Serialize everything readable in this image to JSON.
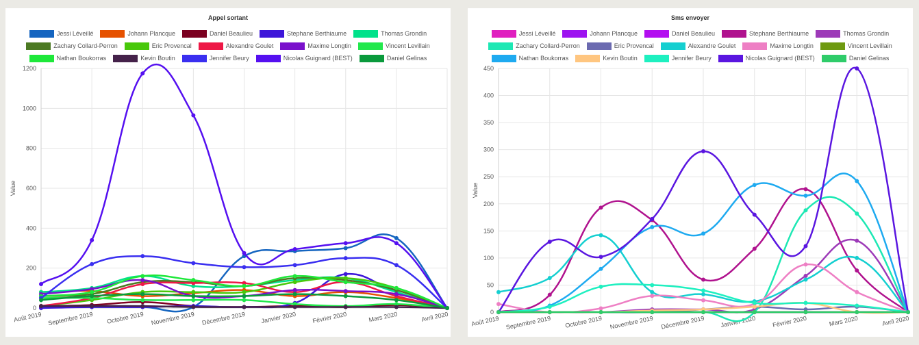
{
  "charts": [
    {
      "id": "left",
      "type": "line",
      "title": "Appel sortant",
      "ylabel": "Value",
      "ylim": [
        0,
        1200
      ],
      "yticks": [
        0,
        200,
        400,
        600,
        800,
        1000,
        1200
      ],
      "categories": [
        "Août 2019",
        "Septembre 2019",
        "Octobre 2019",
        "Novembre 2019",
        "Décembre 2019",
        "Janvier 2020",
        "Février 2020",
        "Mars 2020",
        "Avril 2020"
      ],
      "series": [
        {
          "name": "Jessi Léveillé",
          "color": "#1565c0",
          "values": [
            5,
            5,
            5,
            5,
            260,
            285,
            300,
            350,
            0
          ]
        },
        {
          "name": "Johann Plancque",
          "color": "#e65100",
          "values": [
            80,
            85,
            60,
            75,
            90,
            60,
            80,
            50,
            0
          ]
        },
        {
          "name": "Daniel Beaulieu",
          "color": "#7b0020",
          "values": [
            10,
            15,
            30,
            10,
            5,
            10,
            5,
            15,
            0
          ]
        },
        {
          "name": "Stephane Berthiaume",
          "color": "#3d16d9",
          "values": [
            0,
            5,
            5,
            10,
            5,
            25,
            170,
            80,
            0
          ]
        },
        {
          "name": "Thomas Grondin",
          "color": "#00e28a",
          "values": [
            80,
            100,
            160,
            110,
            110,
            140,
            150,
            80,
            0
          ]
        },
        {
          "name": "Zachary Collard-Perron",
          "color": "#4c7a23",
          "values": [
            60,
            70,
            130,
            130,
            110,
            150,
            140,
            90,
            0
          ]
        },
        {
          "name": "Eric Provencal",
          "color": "#48c80a",
          "values": [
            10,
            40,
            80,
            80,
            80,
            130,
            150,
            100,
            0
          ]
        },
        {
          "name": "Alexandre Goulet",
          "color": "#ee1846",
          "values": [
            10,
            50,
            120,
            125,
            125,
            80,
            130,
            60,
            0
          ]
        },
        {
          "name": "Maxime Longtin",
          "color": "#7a10cc",
          "values": [
            70,
            95,
            140,
            60,
            60,
            90,
            85,
            70,
            0
          ]
        },
        {
          "name": "Vincent Levillain",
          "color": "#22e84c",
          "values": [
            50,
            50,
            40,
            40,
            40,
            20,
            10,
            20,
            0
          ]
        },
        {
          "name": "Nathan Boukorras",
          "color": "#1ee83a",
          "values": [
            60,
            80,
            160,
            140,
            110,
            160,
            130,
            100,
            0
          ]
        },
        {
          "name": "Kevin Boutin",
          "color": "#45224a",
          "values": [
            10,
            10,
            10,
            5,
            5,
            5,
            5,
            5,
            0
          ]
        },
        {
          "name": "Jennifer Beury",
          "color": "#3a2ff0",
          "values": [
            50,
            220,
            260,
            225,
            205,
            215,
            250,
            215,
            0
          ]
        },
        {
          "name": "Nicolas Guignard (BEST)",
          "color": "#5510f0",
          "values": [
            120,
            340,
            1175,
            965,
            275,
            295,
            325,
            325,
            0
          ]
        },
        {
          "name": "Daniel Gelinas",
          "color": "#0a9a3c",
          "values": [
            40,
            60,
            70,
            60,
            60,
            70,
            60,
            40,
            0
          ]
        }
      ]
    },
    {
      "id": "right",
      "type": "line",
      "title": "Sms envoyer",
      "ylabel": "Value",
      "ylim": [
        0,
        450
      ],
      "yticks": [
        0,
        50,
        100,
        150,
        200,
        250,
        300,
        350,
        400,
        450
      ],
      "categories": [
        "Août 2019",
        "Septembre 2019",
        "Octobre 2019",
        "Novembre 2019",
        "Décembre 2019",
        "Janvier 2020",
        "Février 2020",
        "Mars 2020",
        "Avril 2020"
      ],
      "series": [
        {
          "name": "Jessi Léveillé",
          "color": "#e01fbf",
          "values": [
            0,
            0,
            0,
            0,
            0,
            0,
            0,
            0,
            0
          ]
        },
        {
          "name": "Johann Plancque",
          "color": "#9d13f0",
          "values": [
            0,
            0,
            0,
            0,
            0,
            0,
            0,
            0,
            0
          ]
        },
        {
          "name": "Daniel Beaulieu",
          "color": "#b30ef0",
          "values": [
            0,
            0,
            0,
            0,
            0,
            0,
            0,
            0,
            0
          ]
        },
        {
          "name": "Stephane Berthiaume",
          "color": "#b0128e",
          "values": [
            0,
            32,
            193,
            170,
            60,
            117,
            227,
            77,
            0
          ]
        },
        {
          "name": "Thomas Grondin",
          "color": "#9d3ab8",
          "values": [
            0,
            0,
            0,
            5,
            5,
            5,
            67,
            132,
            0
          ]
        },
        {
          "name": "Zachary Collard-Perron",
          "color": "#1de8b4",
          "values": [
            0,
            0,
            0,
            0,
            0,
            0,
            188,
            182,
            0
          ]
        },
        {
          "name": "Eric Provencal",
          "color": "#6b6ab0",
          "values": [
            0,
            0,
            0,
            0,
            5,
            10,
            5,
            10,
            0
          ]
        },
        {
          "name": "Alexandre Goulet",
          "color": "#14cfd0",
          "values": [
            37,
            63,
            142,
            37,
            33,
            20,
            60,
            100,
            0
          ]
        },
        {
          "name": "Maxime Longtin",
          "color": "#ee7fc4",
          "values": [
            15,
            0,
            7,
            30,
            22,
            15,
            88,
            37,
            0
          ]
        },
        {
          "name": "Vincent Levillain",
          "color": "#6e9a10",
          "values": [
            0,
            0,
            0,
            0,
            0,
            0,
            0,
            0,
            0
          ]
        },
        {
          "name": "Nathan Boukorras",
          "color": "#1eaaf0",
          "values": [
            0,
            12,
            80,
            157,
            145,
            235,
            215,
            242,
            0
          ]
        },
        {
          "name": "Kevin Boutin",
          "color": "#ffc680",
          "values": [
            0,
            0,
            0,
            3,
            5,
            10,
            17,
            0,
            0
          ]
        },
        {
          "name": "Jennifer Beury",
          "color": "#1ef0c0",
          "values": [
            0,
            10,
            47,
            50,
            40,
            17,
            17,
            12,
            0
          ]
        },
        {
          "name": "Nicolas Guignard (BEST)",
          "color": "#5a16e0",
          "values": [
            0,
            130,
            102,
            172,
            297,
            180,
            122,
            450,
            0
          ]
        },
        {
          "name": "Daniel Gelinas",
          "color": "#2fcc6a",
          "values": [
            0,
            0,
            0,
            0,
            0,
            0,
            0,
            0,
            0
          ]
        }
      ]
    }
  ]
}
